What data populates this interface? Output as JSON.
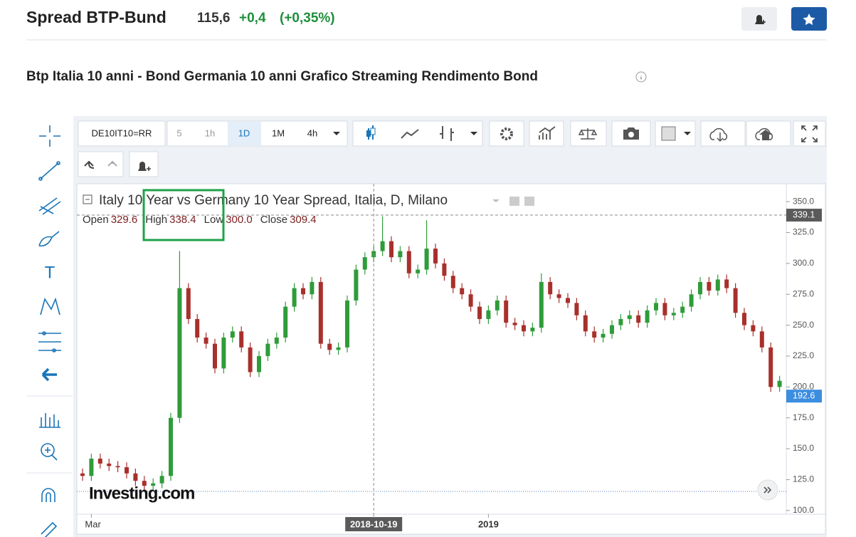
{
  "header": {
    "title": "Spread BTP-Bund",
    "price": "115,6",
    "change": "+0,4",
    "change_pct": "(+0,35%)"
  },
  "subtitle": "Btp Italia 10 anni - Bond Germania 10 anni Grafico Streaming Rendimento Bond",
  "toolbar": {
    "symbol": "DE10IT10=RR",
    "intervals": [
      "5",
      "1h",
      "1D",
      "1M",
      "4h"
    ]
  },
  "chart_data": {
    "type": "candlestick",
    "title": "Italy 10 Year vs Germany 10 Year Spread, Italia, D, Milano",
    "ohlc_legend": [
      {
        "name": "Open",
        "value": "329.6"
      },
      {
        "name": "High",
        "value": "338.4"
      },
      {
        "name": "Low",
        "value": "300.0"
      },
      {
        "name": "Close",
        "value": "309.4"
      }
    ],
    "watermark": "Investing.com",
    "up_color": "#2f9c3a",
    "down_color": "#a8302c",
    "categories": [
      null,
      "Mar",
      null,
      null,
      null,
      null,
      null,
      null,
      null,
      null,
      null,
      null,
      null,
      null,
      null,
      null,
      null,
      null,
      null,
      null,
      null,
      null,
      null,
      null,
      null,
      null,
      null,
      null,
      null,
      null,
      null,
      null,
      null,
      "2018-10-19",
      null,
      null,
      null,
      null,
      null,
      null,
      null,
      null,
      null,
      null,
      null,
      null,
      "2019",
      null,
      null,
      null,
      null,
      null,
      null,
      null,
      null,
      null,
      null,
      null,
      null,
      null,
      null,
      null,
      null,
      null,
      null,
      null,
      null,
      null,
      null,
      null,
      null,
      null,
      null,
      null,
      null,
      null,
      null,
      null,
      null,
      null
    ],
    "open": [
      130,
      128,
      142,
      138,
      136,
      135,
      130,
      124,
      120,
      122,
      128,
      175,
      280,
      255,
      240,
      235,
      215,
      240,
      245,
      232,
      212,
      225,
      235,
      240,
      265,
      280,
      275,
      285,
      235,
      230,
      232,
      270,
      295,
      305,
      310,
      318,
      305,
      310,
      292,
      295,
      312,
      300,
      290,
      280,
      275,
      265,
      255,
      262,
      270,
      252,
      250,
      245,
      248,
      285,
      275,
      272,
      268,
      258,
      245,
      240,
      243,
      250,
      255,
      258,
      252,
      262,
      268,
      258,
      260,
      265,
      275,
      285,
      278,
      287,
      280,
      260,
      250,
      245,
      232,
      200
    ],
    "high": [
      134,
      146,
      146,
      142,
      140,
      139,
      134,
      128,
      126,
      132,
      179,
      310,
      284,
      259,
      244,
      239,
      244,
      249,
      249,
      236,
      229,
      239,
      244,
      269,
      284,
      284,
      289,
      289,
      239,
      236,
      274,
      299,
      309,
      314,
      338,
      322,
      314,
      314,
      299,
      335,
      316,
      304,
      294,
      284,
      279,
      269,
      266,
      274,
      274,
      256,
      254,
      252,
      292,
      289,
      279,
      276,
      272,
      262,
      249,
      247,
      254,
      259,
      262,
      262,
      266,
      272,
      272,
      264,
      269,
      279,
      289,
      289,
      291,
      291,
      284,
      264,
      254,
      249,
      236,
      209
    ],
    "low": [
      124,
      124,
      134,
      132,
      131,
      126,
      120,
      116,
      116,
      118,
      124,
      171,
      251,
      236,
      231,
      211,
      211,
      236,
      228,
      208,
      208,
      221,
      231,
      236,
      261,
      271,
      271,
      231,
      226,
      226,
      228,
      266,
      291,
      301,
      306,
      301,
      301,
      288,
      288,
      291,
      296,
      286,
      276,
      271,
      261,
      251,
      251,
      258,
      248,
      246,
      241,
      241,
      244,
      271,
      268,
      264,
      254,
      241,
      236,
      236,
      239,
      246,
      251,
      248,
      248,
      258,
      254,
      254,
      256,
      261,
      271,
      274,
      274,
      276,
      256,
      246,
      241,
      228,
      196,
      196
    ],
    "close": [
      128,
      142,
      138,
      136,
      135,
      130,
      124,
      120,
      122,
      128,
      175,
      280,
      255,
      240,
      235,
      215,
      240,
      245,
      232,
      212,
      225,
      235,
      240,
      265,
      280,
      275,
      285,
      235,
      230,
      232,
      270,
      295,
      305,
      310,
      318,
      305,
      310,
      292,
      295,
      312,
      300,
      290,
      280,
      275,
      265,
      255,
      262,
      270,
      252,
      250,
      245,
      248,
      285,
      275,
      272,
      268,
      258,
      245,
      240,
      243,
      250,
      255,
      258,
      252,
      262,
      268,
      258,
      260,
      265,
      275,
      285,
      278,
      287,
      280,
      260,
      250,
      245,
      232,
      200,
      205
    ],
    "ylim": [
      97,
      364.5
    ],
    "yticks": [
      {
        "value": 100,
        "label": "100.0"
      },
      {
        "value": 125,
        "label": "125.0"
      },
      {
        "value": 150,
        "label": "150.0"
      },
      {
        "value": 175,
        "label": "175.0"
      },
      {
        "value": 200,
        "label": "200.0"
      },
      {
        "value": 225,
        "label": "225.0"
      },
      {
        "value": 250,
        "label": "250.0"
      },
      {
        "value": 275,
        "label": "275.0"
      },
      {
        "value": 300,
        "label": "300.0"
      },
      {
        "value": 325,
        "label": "325.0"
      },
      {
        "value": 350,
        "label": "350.0"
      }
    ],
    "price_lines": [
      {
        "value": 339.1,
        "label": "339.1",
        "color": "#5a5a5a"
      },
      {
        "value": 192.6,
        "label": "192.6",
        "color": "#3b8de0"
      }
    ],
    "crosshair_index": 33
  }
}
